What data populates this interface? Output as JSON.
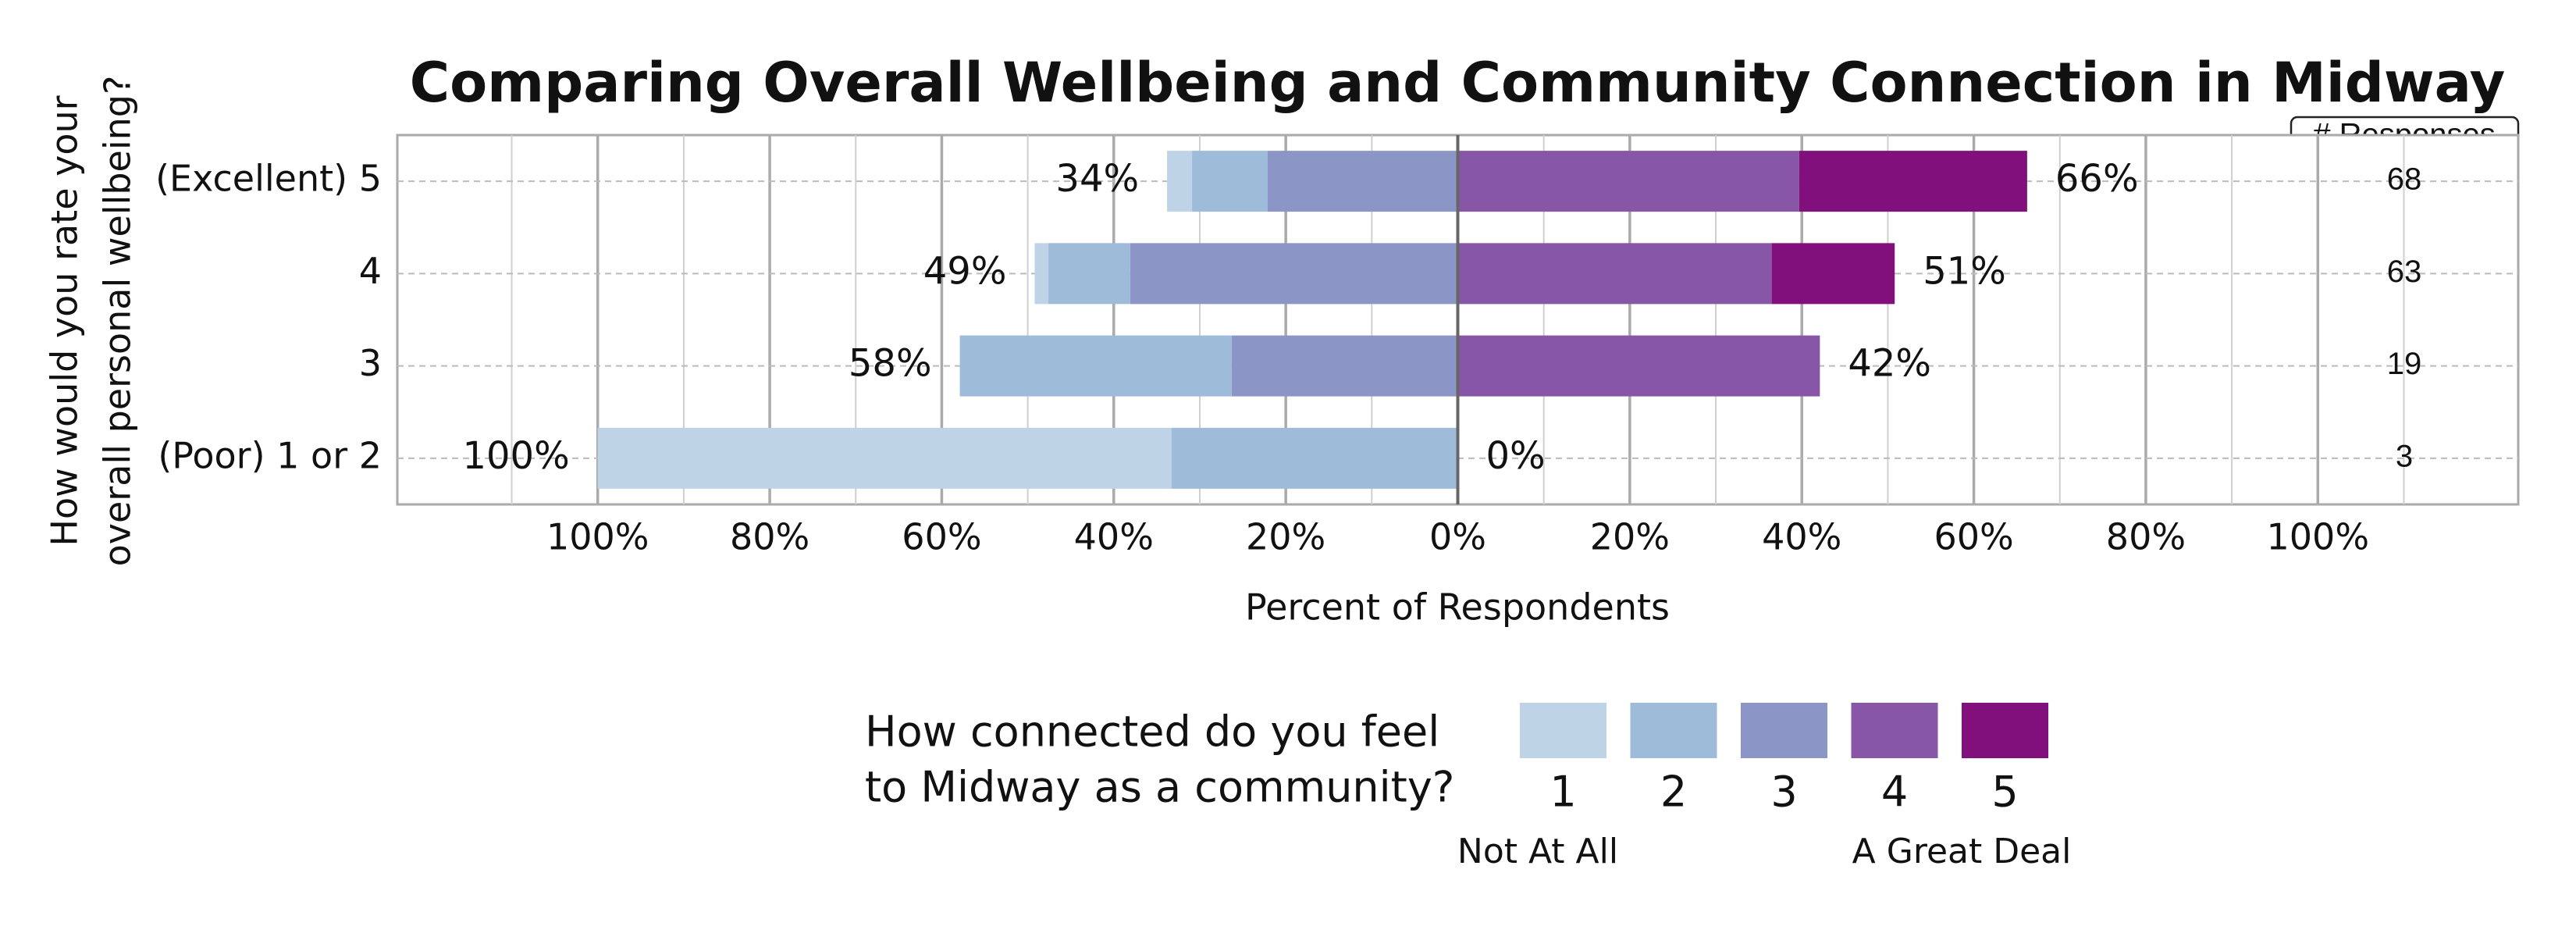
{
  "chart_data": {
    "type": "diverging_bar",
    "title": "Comparing Overall Wellbeing and Community Connection in Midway",
    "x_label": "Percent of Respondents",
    "y_label": [
      "How would you rate your",
      "overall personal wellbeing?"
    ],
    "categories": [
      "(Excellent) 5",
      "4",
      "3",
      "(Poor) 1 or 2"
    ],
    "series": [
      {
        "name": "1",
        "color": "#bfd3e6",
        "side": "left",
        "values": [
          2.9,
          1.6,
          0,
          66.7
        ]
      },
      {
        "name": "2",
        "color": "#9ebcda",
        "side": "left",
        "values": [
          8.8,
          9.5,
          31.6,
          33.3
        ]
      },
      {
        "name": "3",
        "color": "#8c96c6",
        "side": "left",
        "values": [
          22.1,
          38.1,
          26.3,
          0
        ]
      },
      {
        "name": "4",
        "color": "#8856a7",
        "side": "right",
        "values": [
          39.7,
          36.5,
          42.1,
          0
        ]
      },
      {
        "name": "5",
        "color": "#810f7c",
        "side": "right",
        "values": [
          26.5,
          14.3,
          0,
          0
        ]
      }
    ],
    "left_totals": [
      34,
      49,
      58,
      100
    ],
    "left_total_labels": [
      "34%",
      "49%",
      "58%",
      "100%"
    ],
    "right_totals": [
      66,
      51,
      42,
      0
    ],
    "right_total_labels": [
      "66%",
      "51%",
      "42%",
      "0%"
    ],
    "responses_header": "# Responses",
    "responses": [
      68,
      63,
      19,
      3
    ],
    "xlim": [
      -123.3,
      123.3
    ],
    "xticks": [
      {
        "value": -100,
        "label": "100%"
      },
      {
        "value": -80,
        "label": "80%"
      },
      {
        "value": -60,
        "label": "60%"
      },
      {
        "value": -40,
        "label": "40%"
      },
      {
        "value": -20,
        "label": "20%"
      },
      {
        "value": 0,
        "label": "0%"
      },
      {
        "value": 20,
        "label": "20%"
      },
      {
        "value": 40,
        "label": "40%"
      },
      {
        "value": 60,
        "label": "60%"
      },
      {
        "value": 80,
        "label": "80%"
      },
      {
        "value": 100,
        "label": "100%"
      }
    ],
    "minor_xticks": [
      -110,
      -90,
      -70,
      -50,
      -30,
      -10,
      10,
      30,
      50,
      70,
      90,
      110
    ],
    "grid": true,
    "legend_title": [
      "How connected do you feel",
      "to Midway as a community?"
    ],
    "legend_low_label": "Not At All",
    "legend_high_label": "A Great Deal"
  }
}
